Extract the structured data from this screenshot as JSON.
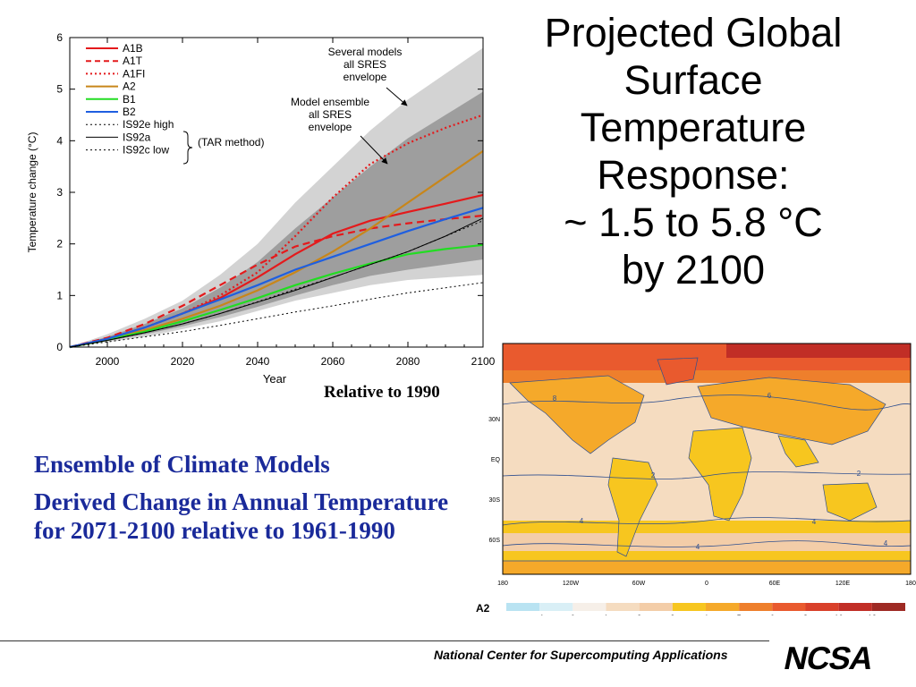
{
  "title_lines": [
    "Projected Global",
    "Surface",
    "Temperature",
    "Response:",
    "~ 1.5 to 5.8 °C",
    "by 2100"
  ],
  "relative_note": "Relative to 1990",
  "caption": {
    "line1": "Ensemble of Climate Models",
    "line2": "Derived Change in Annual Temperature for 2071-2100 relative to 1961-1990"
  },
  "footer": {
    "org": "National Center for Supercomputing Applications",
    "logo": "NCSA"
  },
  "chart_data": [
    {
      "type": "line",
      "xlabel": "Year",
      "ylabel": "Temperature change (°C)",
      "xlim": [
        1990,
        2100
      ],
      "ylim": [
        0,
        6
      ],
      "xticks": [
        2000,
        2020,
        2040,
        2060,
        2080,
        2100
      ],
      "yticks": [
        0,
        1,
        2,
        3,
        4,
        5,
        6
      ],
      "grid": false,
      "legend_position": "top-left",
      "annotations": [
        {
          "text": "Several models all SRES envelope",
          "lines": [
            "Several models",
            "all SRES",
            "envelope"
          ]
        },
        {
          "text": "Model ensemble all SRES envelope",
          "lines": [
            "Model ensemble",
            "all SRES",
            "envelope"
          ]
        },
        {
          "text": "(TAR method)"
        }
      ],
      "envelopes": [
        {
          "name": "Several models all SRES envelope",
          "color": "#d3d3d3",
          "x": [
            1990,
            2000,
            2010,
            2020,
            2030,
            2040,
            2050,
            2060,
            2070,
            2080,
            2090,
            2100
          ],
          "upper": [
            0,
            0.25,
            0.55,
            0.9,
            1.4,
            2.0,
            2.8,
            3.5,
            4.2,
            4.8,
            5.3,
            5.8
          ],
          "lower": [
            0,
            0.1,
            0.2,
            0.35,
            0.5,
            0.7,
            0.9,
            1.05,
            1.2,
            1.3,
            1.35,
            1.4
          ]
        },
        {
          "name": "Model ensemble all SRES envelope",
          "color": "#9e9e9e",
          "x": [
            1990,
            2000,
            2010,
            2020,
            2030,
            2040,
            2050,
            2060,
            2070,
            2080,
            2090,
            2100
          ],
          "upper": [
            0,
            0.2,
            0.45,
            0.75,
            1.15,
            1.65,
            2.3,
            2.9,
            3.5,
            4.05,
            4.5,
            4.95
          ],
          "lower": [
            0,
            0.12,
            0.25,
            0.4,
            0.58,
            0.78,
            1.0,
            1.2,
            1.38,
            1.5,
            1.6,
            1.7
          ]
        }
      ],
      "series": [
        {
          "name": "A1B",
          "color": "#e41a1c",
          "dash": "solid",
          "x": [
            1990,
            2000,
            2010,
            2020,
            2030,
            2040,
            2050,
            2060,
            2070,
            2080,
            2090,
            2100
          ],
          "values": [
            0,
            0.16,
            0.38,
            0.65,
            0.95,
            1.35,
            1.8,
            2.2,
            2.45,
            2.62,
            2.78,
            2.95
          ]
        },
        {
          "name": "A1T",
          "color": "#e41a1c",
          "dash": "dashed",
          "x": [
            1990,
            2000,
            2010,
            2020,
            2030,
            2040,
            2050,
            2060,
            2070,
            2080,
            2090,
            2100
          ],
          "values": [
            0,
            0.18,
            0.45,
            0.8,
            1.2,
            1.6,
            1.95,
            2.15,
            2.3,
            2.4,
            2.48,
            2.55
          ]
        },
        {
          "name": "A1FI",
          "color": "#e41a1c",
          "dash": "dotted",
          "x": [
            1990,
            2000,
            2010,
            2020,
            2030,
            2040,
            2050,
            2060,
            2070,
            2080,
            2090,
            2100
          ],
          "values": [
            0,
            0.16,
            0.38,
            0.65,
            1.0,
            1.45,
            2.15,
            2.9,
            3.55,
            3.95,
            4.25,
            4.5
          ]
        },
        {
          "name": "A2",
          "color": "#c8861a",
          "dash": "solid",
          "x": [
            1990,
            2000,
            2010,
            2020,
            2030,
            2040,
            2050,
            2060,
            2070,
            2080,
            2090,
            2100
          ],
          "values": [
            0,
            0.15,
            0.33,
            0.55,
            0.8,
            1.1,
            1.45,
            1.85,
            2.3,
            2.8,
            3.3,
            3.8
          ]
        },
        {
          "name": "B1",
          "color": "#22dd22",
          "dash": "solid",
          "x": [
            1990,
            2000,
            2010,
            2020,
            2030,
            2040,
            2050,
            2060,
            2070,
            2080,
            2090,
            2100
          ],
          "values": [
            0,
            0.14,
            0.3,
            0.5,
            0.72,
            0.95,
            1.2,
            1.42,
            1.62,
            1.8,
            1.9,
            1.98
          ]
        },
        {
          "name": "B2",
          "color": "#1f5fe0",
          "dash": "solid",
          "x": [
            1990,
            2000,
            2010,
            2020,
            2030,
            2040,
            2050,
            2060,
            2070,
            2080,
            2090,
            2100
          ],
          "values": [
            0,
            0.16,
            0.38,
            0.65,
            0.92,
            1.2,
            1.5,
            1.75,
            2.0,
            2.25,
            2.48,
            2.7
          ]
        },
        {
          "name": "IS92e high",
          "color": "#000000",
          "dash": "dotted",
          "x": [
            1990,
            2000,
            2010,
            2020,
            2030,
            2040,
            2050,
            2060,
            2070,
            2080,
            2090,
            2100
          ],
          "values": [
            0,
            0.13,
            0.28,
            0.45,
            0.65,
            0.88,
            1.12,
            1.35,
            1.6,
            1.85,
            2.15,
            2.45
          ]
        },
        {
          "name": "IS92a",
          "color": "#000000",
          "dash": "solid",
          "x": [
            1990,
            2000,
            2010,
            2020,
            2030,
            2040,
            2050,
            2060,
            2070,
            2080,
            2090,
            2100
          ],
          "values": [
            0,
            0.13,
            0.28,
            0.45,
            0.65,
            0.87,
            1.1,
            1.35,
            1.6,
            1.85,
            2.15,
            2.5
          ]
        },
        {
          "name": "IS92c low",
          "color": "#000000",
          "dash": "dotted",
          "x": [
            1990,
            2000,
            2010,
            2020,
            2030,
            2040,
            2050,
            2060,
            2070,
            2080,
            2090,
            2100
          ],
          "values": [
            0,
            0.1,
            0.2,
            0.3,
            0.42,
            0.55,
            0.68,
            0.8,
            0.93,
            1.05,
            1.15,
            1.25
          ]
        }
      ]
    },
    {
      "type": "heatmap",
      "scenario_label": "A2",
      "x_ticks": [
        "180",
        "120W",
        "60W",
        "0",
        "60E",
        "120E",
        "180"
      ],
      "y_ticks": [
        "30N",
        "EQ",
        "30S",
        "60S"
      ],
      "colorbar_labels": [
        "−1",
        "0",
        "1",
        "2",
        "3",
        "4",
        "5",
        "6",
        "8",
        "10",
        "12"
      ],
      "colorbar_colors": [
        "#b9e3f2",
        "#d9eff6",
        "#f6efe8",
        "#f5dcc0",
        "#f3cda8",
        "#f7c61f",
        "#f5a92a",
        "#ee7f2c",
        "#e95a2e",
        "#d9402a",
        "#c12e26",
        "#9e2a24"
      ],
      "contour_labels": [
        "2",
        "4",
        "6",
        "8"
      ]
    }
  ]
}
